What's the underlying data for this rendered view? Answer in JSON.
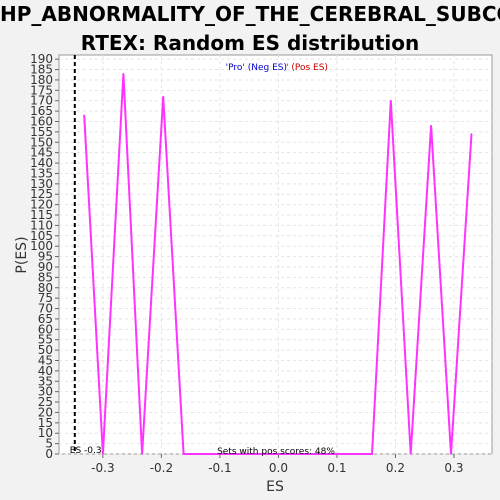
{
  "chart_data": {
    "type": "line",
    "title_lines": [
      "HP_ABNORMALITY_OF_THE_CEREBRAL_SUBCO",
      "RTEX: Random ES distribution"
    ],
    "xlabel": "ES",
    "ylabel": "P(ES)",
    "xlim": [
      -0.375,
      0.365
    ],
    "ylim": [
      0,
      192
    ],
    "xticks": [
      -0.3,
      -0.2,
      -0.1,
      0.0,
      0.1,
      0.2,
      0.3
    ],
    "xtick_labels": [
      "-0.3",
      "-0.2",
      "-0.1",
      "0.0",
      "0.1",
      "0.2",
      "0.3"
    ],
    "yticks": [
      0,
      5,
      10,
      15,
      20,
      25,
      30,
      35,
      40,
      45,
      50,
      55,
      60,
      65,
      70,
      75,
      80,
      85,
      90,
      95,
      100,
      105,
      110,
      115,
      120,
      125,
      130,
      135,
      140,
      145,
      150,
      155,
      160,
      165,
      170,
      175,
      180,
      185,
      190
    ],
    "ytick_labels": [
      "0",
      "5",
      "10",
      "15",
      "20",
      "25",
      "30",
      "35",
      "40",
      "45",
      "50",
      "55",
      "60",
      "65",
      "70",
      "75",
      "80",
      "85",
      "90",
      "95",
      "100",
      "105",
      "110",
      "115",
      "120",
      "125",
      "130",
      "135",
      "140",
      "145",
      "150",
      "155",
      "160",
      "165",
      "170",
      "175",
      "180",
      "185",
      "190"
    ],
    "grid": true,
    "series": [
      {
        "color": "#ff33ff",
        "x": [
          -0.332,
          -0.3,
          -0.265,
          -0.233,
          -0.197,
          -0.162,
          0.16,
          0.192,
          0.226,
          0.261,
          0.295,
          0.33
        ],
        "y": [
          163,
          0,
          183,
          0,
          172,
          0,
          0,
          170,
          0,
          158,
          0,
          154
        ]
      }
    ],
    "annotation": {
      "x": -0.348,
      "label": "ES -0.3",
      "color": "#000000"
    },
    "legend": {
      "placement": "top-center",
      "neg_label": "'Pro' (Neg ES)",
      "neg_color": "#0000cc",
      "pos_label": "' (Pos ES)",
      "pos_color": "#cc0000"
    },
    "footer_text": "Sets with pos scores: 48%"
  }
}
